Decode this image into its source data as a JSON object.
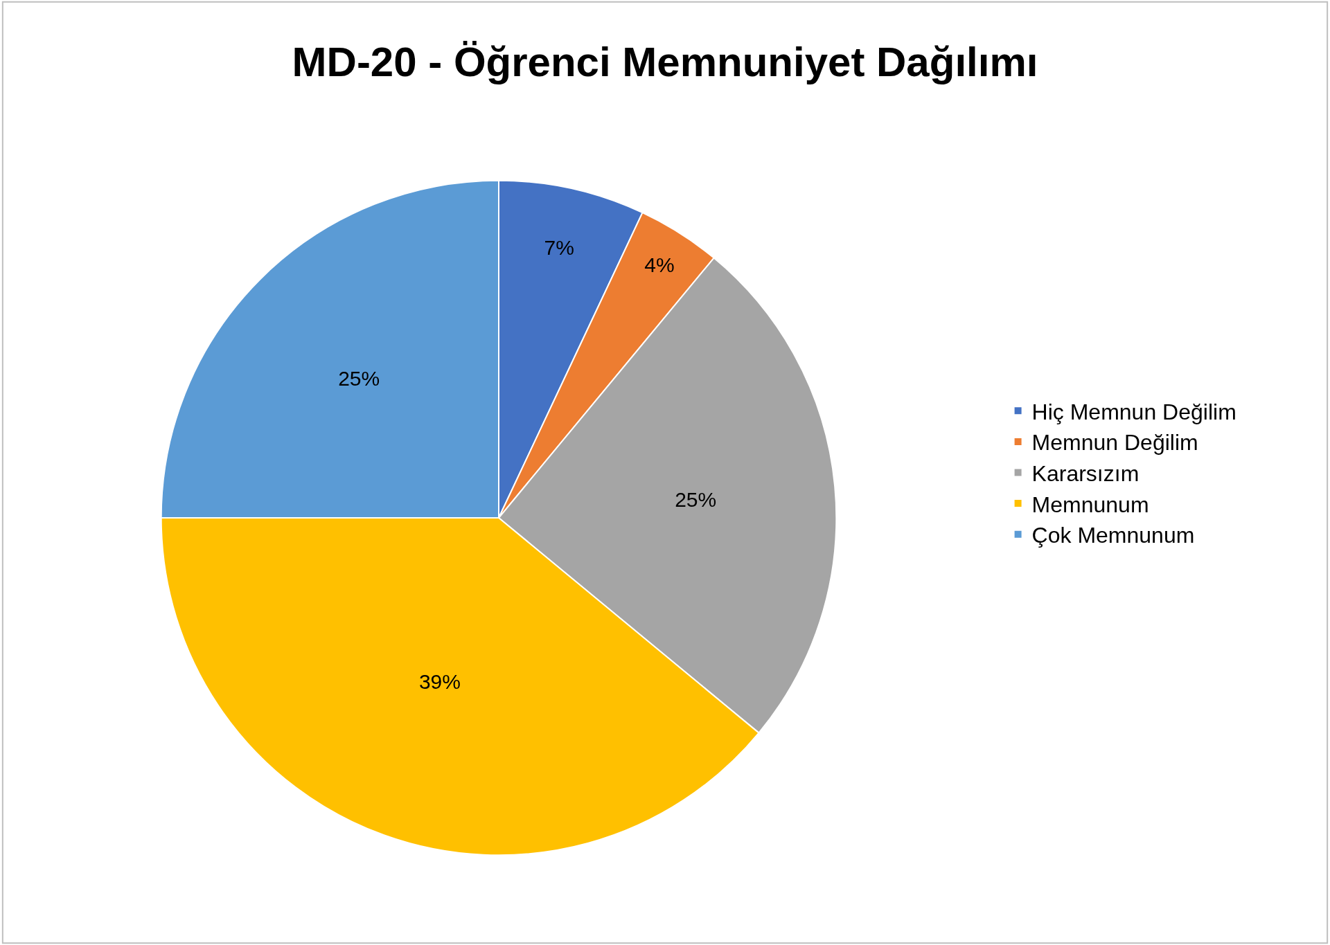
{
  "chart_data": {
    "type": "pie",
    "title": "MD-20 - Öğrenci Memnuniyet Dağılımı",
    "categories": [
      "Hiç Memnun Değilim",
      "Memnun Değilim",
      "Kararsızım",
      "Memnunum",
      "Çok Memnunum"
    ],
    "values": [
      7,
      4,
      25,
      39,
      25
    ],
    "value_labels": [
      "7%",
      "4%",
      "25%",
      "39%",
      "25%"
    ],
    "colors": [
      "#4472c4",
      "#ed7d31",
      "#a5a5a5",
      "#ffc000",
      "#5b9bd5"
    ],
    "legend": "right"
  }
}
